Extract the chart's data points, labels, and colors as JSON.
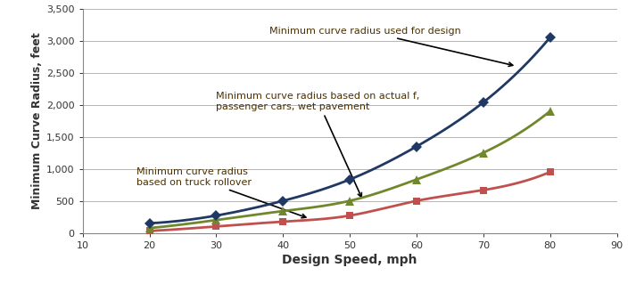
{
  "xlabel": "Design Speed, mph",
  "ylabel": "Minimum Curve Radius, feet",
  "xlim": [
    10,
    90
  ],
  "ylim": [
    0,
    3500
  ],
  "xticks": [
    10,
    20,
    30,
    40,
    50,
    60,
    70,
    80,
    90
  ],
  "yticks": [
    0,
    500,
    1000,
    1500,
    2000,
    2500,
    3000,
    3500
  ],
  "ytick_labels": [
    "0",
    "500",
    "1,000",
    "1,500",
    "2,000",
    "2,500",
    "3,000",
    "3,500"
  ],
  "design_speed": [
    20,
    30,
    40,
    50,
    60,
    70,
    80
  ],
  "min_radius_design": [
    150,
    270,
    500,
    833,
    1348,
    2037,
    3050
  ],
  "min_radius_wet": [
    75,
    200,
    340,
    500,
    833,
    1250,
    1900
  ],
  "min_radius_truck": [
    30,
    100,
    175,
    270,
    500,
    667,
    950
  ],
  "color_design": "#1F3864",
  "color_wet": "#70882B",
  "color_truck": "#C0504D",
  "marker_design": "D",
  "marker_wet": "^",
  "marker_truck": "s",
  "annotation_design": "Minimum curve radius used for design",
  "annotation_wet": "Minimum curve radius based on actual f,\npassenger cars, wet pavement",
  "annotation_truck": "Minimum curve radius\nbased on truck rollover",
  "annotation_color": "#4a3000",
  "bg_color": "#FFFFFF",
  "grid_color": "#AAAAAA"
}
